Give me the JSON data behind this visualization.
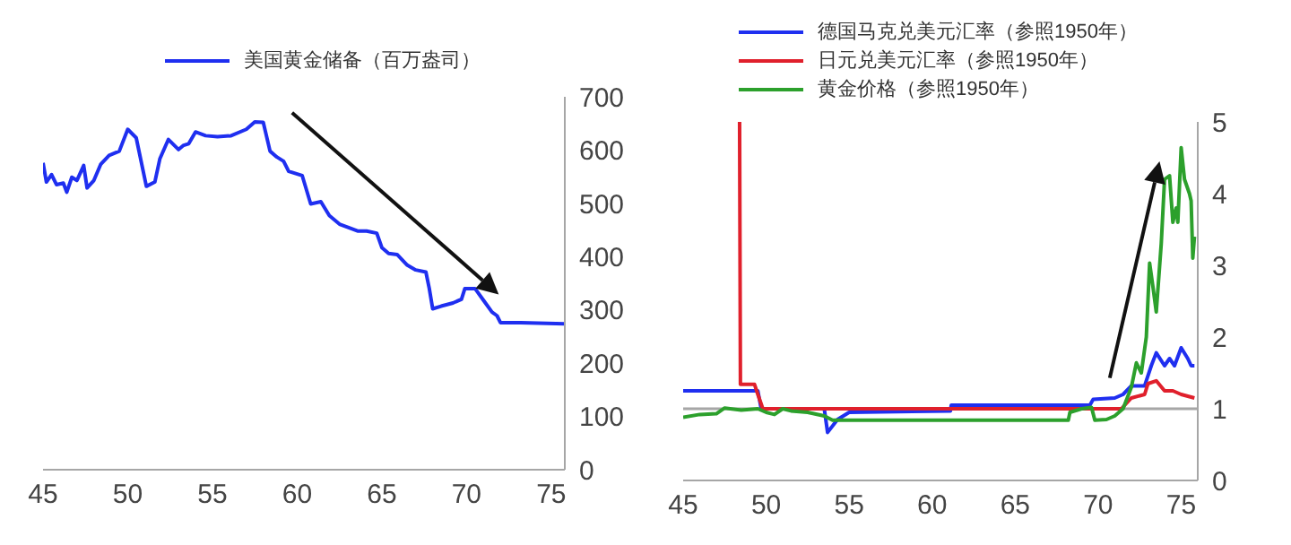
{
  "chart_data": [
    {
      "type": "line",
      "legend": "top",
      "xlim": [
        45,
        75.8
      ],
      "xticks": [
        45,
        50,
        55,
        60,
        65,
        70,
        75
      ],
      "ylim": [
        0,
        700
      ],
      "yticks": [
        0,
        100,
        200,
        300,
        400,
        500,
        600,
        700
      ],
      "series": [
        {
          "name": "美国黄金储备（百万盎司）",
          "color": "#1f2ff0",
          "x": [
            45.0,
            45.2,
            45.5,
            45.8,
            46.2,
            46.4,
            46.7,
            47.0,
            47.4,
            47.6,
            48.0,
            48.4,
            48.9,
            49.5,
            50.0,
            50.5,
            51.1,
            51.6,
            51.9,
            52.4,
            53.0,
            53.3,
            53.6,
            54.0,
            54.6,
            55.3,
            56.1,
            57.0,
            57.5,
            58.0,
            58.4,
            58.8,
            59.2,
            59.5,
            60.3,
            60.8,
            61.4,
            61.9,
            62.5,
            63.0,
            63.6,
            64.1,
            64.7,
            65.0,
            65.4,
            65.9,
            66.5,
            67.0,
            67.6,
            67.8,
            68.0,
            68.5,
            69.2,
            69.7,
            69.9,
            70.5,
            71.0,
            71.5,
            71.8,
            72.0,
            73.2,
            75.8
          ],
          "values": [
            576,
            540,
            554,
            535,
            538,
            521,
            549,
            543,
            571,
            529,
            543,
            573,
            590,
            598,
            639,
            623,
            532,
            540,
            584,
            620,
            601,
            609,
            612,
            634,
            627,
            625,
            627,
            639,
            653,
            652,
            598,
            587,
            579,
            560,
            552,
            499,
            503,
            477,
            461,
            455,
            448,
            448,
            444,
            417,
            406,
            404,
            384,
            375,
            371,
            340,
            302,
            307,
            313,
            320,
            340,
            340,
            318,
            296,
            289,
            276,
            276,
            274
          ]
        }
      ]
    },
    {
      "type": "line",
      "legend": "top",
      "xlim": [
        45,
        76
      ],
      "xticks": [
        45,
        50,
        55,
        60,
        65,
        70,
        75
      ],
      "ylim": [
        0,
        5
      ],
      "yticks": [
        0,
        1,
        2,
        3,
        4,
        5
      ],
      "ref_lines": [
        {
          "axis": "y",
          "value": 1,
          "color": "#a6a6a6"
        }
      ],
      "series": [
        {
          "name": "德国马克兑美元汇率（参照1950年）",
          "color": "#1f2ff0",
          "x": [
            45,
            49.5,
            49.7,
            53.5,
            53.7,
            54.3,
            55,
            61.1,
            61.15,
            69.5,
            69.7,
            71,
            71.5,
            72,
            72.8,
            73.2,
            73.5,
            74,
            74.3,
            74.6,
            75,
            75.4,
            75.6,
            75.8
          ],
          "values": [
            1.25,
            1.25,
            1.0,
            1.0,
            0.67,
            0.85,
            0.95,
            0.97,
            1.05,
            1.05,
            1.13,
            1.15,
            1.2,
            1.32,
            1.32,
            1.6,
            1.78,
            1.6,
            1.7,
            1.6,
            1.85,
            1.7,
            1.6,
            1.6
          ]
        },
        {
          "name": "日元兑美元汇率（参照1950年）",
          "color": "#e0202c",
          "x": [
            48.4,
            48.45,
            49.3,
            49.5,
            49.8,
            71.4,
            72,
            72.8,
            73,
            73.5,
            74,
            74.5,
            75,
            75.8
          ],
          "values": [
            5,
            1.34,
            1.34,
            1.2,
            1.0,
            1.0,
            1.15,
            1.2,
            1.35,
            1.39,
            1.25,
            1.25,
            1.2,
            1.15
          ]
        },
        {
          "name": "黄金价格（参照1950年）",
          "color": "#2ca02c",
          "x": [
            45,
            46,
            47,
            47.5,
            48.5,
            49.5,
            50,
            50.5,
            51,
            51.5,
            52.5,
            53.5,
            54,
            68.2,
            68.3,
            69,
            69.6,
            69.8,
            70.5,
            71,
            71.5,
            72,
            72.3,
            72.6,
            72.9,
            73.1,
            73.3,
            73.5,
            73.8,
            74,
            74.3,
            74.5,
            74.7,
            74.8,
            75,
            75.2,
            75.5,
            75.6,
            75.7,
            75.8
          ],
          "values": [
            0.88,
            0.92,
            0.93,
            1.01,
            0.98,
            1.0,
            0.95,
            0.92,
            1.0,
            0.97,
            0.95,
            0.9,
            0.84,
            0.84,
            0.95,
            1.0,
            1.02,
            0.84,
            0.85,
            0.9,
            1.0,
            1.3,
            1.64,
            1.5,
            2.0,
            3.03,
            2.7,
            2.35,
            3.3,
            4.2,
            4.25,
            3.6,
            3.8,
            3.6,
            4.64,
            4.2,
            4.0,
            3.9,
            3.1,
            3.4
          ]
        }
      ]
    }
  ]
}
